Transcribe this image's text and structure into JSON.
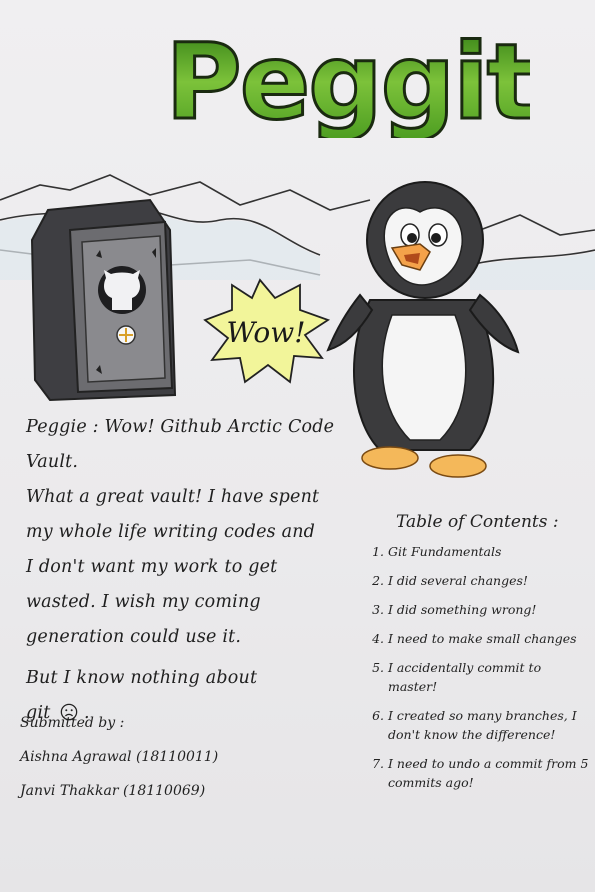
{
  "title": "Peggit",
  "bubble": "Wow!",
  "story": {
    "lines": [
      "Peggie : Wow! Github Arctic Code Vault.",
      "What a great vault! I have spent",
      "my whole life writing codes and",
      "I don't want my work to get",
      "wasted. I wish my coming",
      "generation could use it."
    ],
    "line_but_1": "But I know nothing about",
    "line_but_2": "git",
    "sad_icon": "sad-face-icon"
  },
  "credits": {
    "label": "Submitted by :",
    "authors": [
      "Aishna Agrawal (18110011)",
      "Janvi Thakkar (18110069)"
    ]
  },
  "toc": {
    "title": "Table of Contents :",
    "items": [
      {
        "num": "1.",
        "text": "Git Fundamentals"
      },
      {
        "num": "2.",
        "text": "I did several changes!"
      },
      {
        "num": "3.",
        "text": "I did something wrong!"
      },
      {
        "num": "4.",
        "text": "I need to make small changes"
      },
      {
        "num": "5.",
        "text": "I accidentally commit to master!"
      },
      {
        "num": "6.",
        "text": "I created so many branches, I don't know the difference!"
      },
      {
        "num": "7.",
        "text": "I need to undo a commit from 5 commits ago!"
      }
    ]
  },
  "colors": {
    "title_green": "#3f8f1f",
    "title_light": "#9ed64a",
    "vault_gray": "#5a5a5e",
    "penguin_black": "#3b3b3d",
    "beak_orange": "#f4a24a",
    "star_yellow": "#f2f59a"
  }
}
